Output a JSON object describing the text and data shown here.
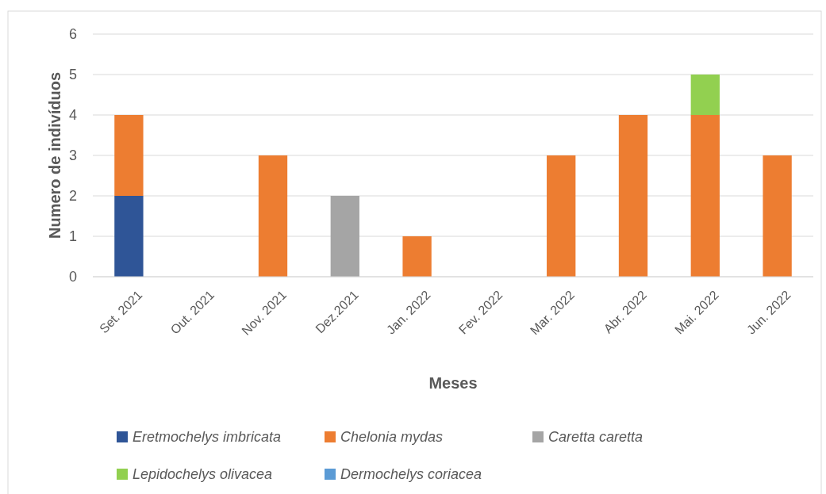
{
  "chart_data": {
    "type": "bar",
    "stacked": true,
    "xlabel": "Meses",
    "ylabel": "Numero de indivíduos",
    "categories": [
      "Set. 2021",
      "Out. 2021",
      "Nov. 2021",
      "Dez.2021",
      "Jan. 2022",
      "Fev. 2022",
      "Mar. 2022",
      "Abr. 2022",
      "Mai. 2022",
      "Jun. 2022"
    ],
    "series": [
      {
        "name": "Eretmochelys imbricata",
        "color": "#2f5597",
        "values": [
          2,
          0,
          0,
          0,
          0,
          0,
          0,
          0,
          0,
          0
        ]
      },
      {
        "name": "Chelonia mydas",
        "color": "#ed7d31",
        "values": [
          2,
          0,
          3,
          0,
          1,
          0,
          3,
          4,
          4,
          3
        ]
      },
      {
        "name": "Caretta caretta",
        "color": "#a5a5a5",
        "values": [
          0,
          0,
          0,
          2,
          0,
          0,
          0,
          0,
          0,
          0
        ]
      },
      {
        "name": "Lepidochelys olivacea",
        "color": "#92d050",
        "values": [
          0,
          0,
          0,
          0,
          0,
          0,
          0,
          0,
          1,
          0
        ]
      },
      {
        "name": "Dermochelys coriacea",
        "color": "#5b9bd5",
        "values": [
          0,
          0,
          0,
          0,
          0,
          0,
          0,
          0,
          0,
          0
        ]
      }
    ],
    "ylim": [
      0,
      6
    ],
    "yticks": [
      0,
      1,
      2,
      3,
      4,
      5,
      6
    ],
    "grid": "y",
    "legend": "bottom"
  }
}
